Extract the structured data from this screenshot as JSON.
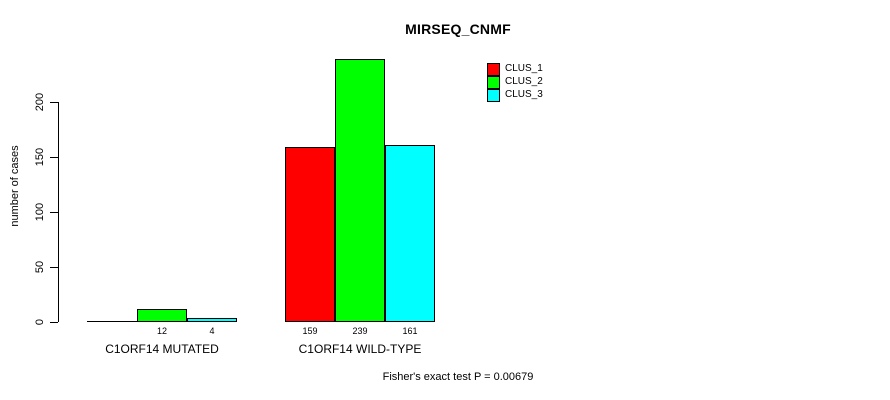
{
  "chart_data": {
    "type": "bar",
    "title": "MIRSEQ_CNMF",
    "categories": [
      "C1ORF14 MUTATED",
      "C1ORF14 WILD-TYPE"
    ],
    "series": [
      {
        "name": "CLUS_1",
        "color": "#ff0000",
        "values": [
          0,
          159
        ]
      },
      {
        "name": "CLUS_2",
        "color": "#00ff00",
        "values": [
          12,
          239
        ]
      },
      {
        "name": "CLUS_3",
        "color": "#00ffff",
        "values": [
          4,
          161
        ]
      }
    ],
    "ylabel": "number of cases",
    "yticks": [
      0,
      50,
      100,
      150,
      200
    ],
    "ylim": [
      0,
      240
    ],
    "grid": false,
    "legend_position": "top-right",
    "bar_border_color": "#000000",
    "annotation": "Fisher's exact test P = 0.00679"
  }
}
